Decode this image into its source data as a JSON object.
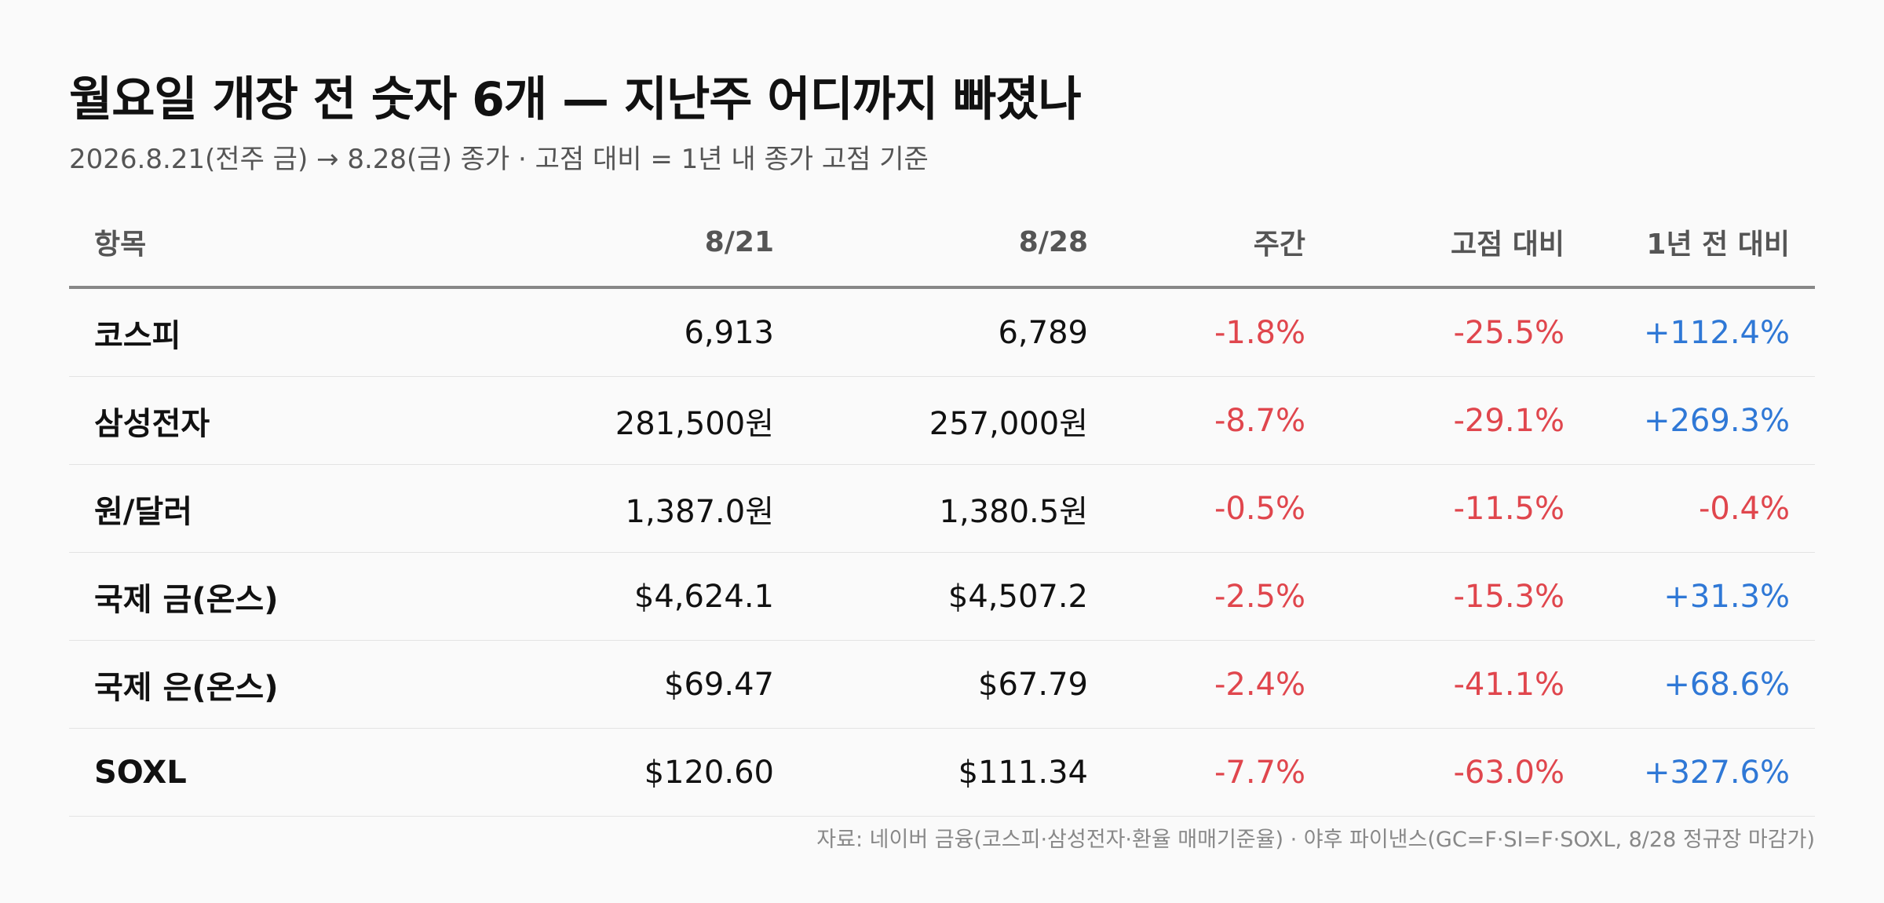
{
  "chart_data": {
    "type": "table",
    "title": "월요일 개장 전 숫자 6개 — 지난주 어디까지 빠졌나",
    "subtitle": "2026.8.21(전주 금) → 8.28(금) 종가 · 고점 대비 = 1년 내 종가 고점 기준",
    "columns": [
      "항목",
      "8/21",
      "8/28",
      "주간",
      "고점 대비",
      "1년 전 대비"
    ],
    "rows": [
      {
        "name": "코스피",
        "prev": "6,913",
        "curr": "6,789",
        "weekly": "-1.8%",
        "from_high": "-25.5%",
        "yoy": "+112.4%"
      },
      {
        "name": "삼성전자",
        "prev": "281,500원",
        "curr": "257,000원",
        "weekly": "-8.7%",
        "from_high": "-29.1%",
        "yoy": "+269.3%"
      },
      {
        "name": "원/달러",
        "prev": "1,387.0원",
        "curr": "1,380.5원",
        "weekly": "-0.5%",
        "from_high": "-11.5%",
        "yoy": "-0.4%"
      },
      {
        "name": "국제 금(온스)",
        "prev": "$4,624.1",
        "curr": "$4,507.2",
        "weekly": "-2.5%",
        "from_high": "-15.3%",
        "yoy": "+31.3%"
      },
      {
        "name": "국제 은(온스)",
        "prev": "$69.47",
        "curr": "$67.79",
        "weekly": "-2.4%",
        "from_high": "-41.1%",
        "yoy": "+68.6%"
      },
      {
        "name": "SOXL",
        "prev": "$120.60",
        "curr": "$111.34",
        "weekly": "-7.7%",
        "from_high": "-63.0%",
        "yoy": "+327.6%"
      }
    ],
    "source": "자료: 네이버 금융(코스피·삼성전자·환율 매매기준율) · 야후 파이낸스(GC=F·SI=F·SOXL, 8/28 정규장 마감가)"
  },
  "colors": {
    "negative": "#e0464d",
    "positive": "#2f78d6",
    "text": "#111111",
    "muted": "#555555",
    "background": "#fafafa"
  }
}
